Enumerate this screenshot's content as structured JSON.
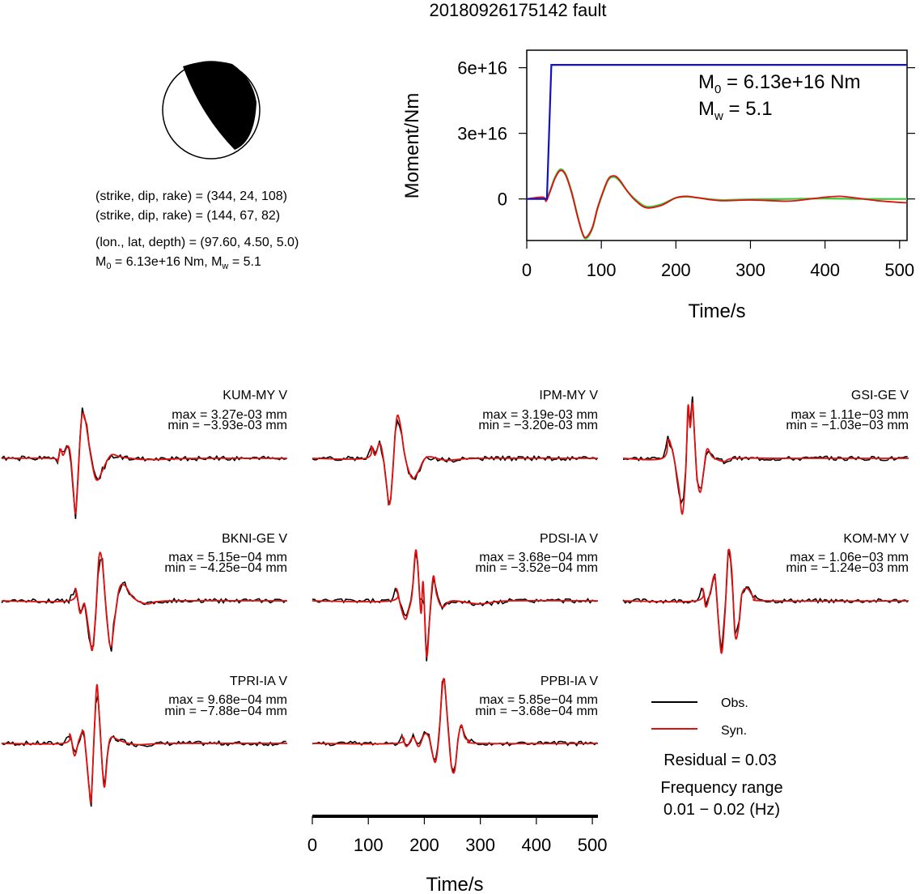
{
  "figure": {
    "title": "20180926175142 fault",
    "info_lines": [
      "(strike, dip, rake) = (344, 24, 108)",
      "(strike, dip, rake) = (144, 67, 82)",
      "(lon., lat, depth) = (97.60, 4.50, 5.0)"
    ],
    "info_m0_prefix": "M",
    "info_m0_sub": "0",
    "info_m0_rest": " = 6.13e+16 Nm, M",
    "info_mw_sub": "w",
    "info_mw_rest": " = 5.1",
    "moment_box": {
      "m0_prefix": "M",
      "m0_sub": "0",
      "m0_rest": " = 6.13e+16 Nm",
      "mw_prefix": "M",
      "mw_sub": "w",
      "mw_rest": " = 5.1"
    },
    "legend": {
      "obs": "Obs.",
      "syn": "Syn.",
      "residual": "Residual = 0.03",
      "freq_title": "Frequency range",
      "freq_value": "0.01 − 0.02 (Hz)"
    },
    "colors": {
      "moment": "#1010c8",
      "obs": "#000000",
      "syn": "#e01010",
      "green": "#3cc83c"
    }
  },
  "chart_data": [
    {
      "type": "line",
      "name": "moment",
      "xlabel": "Time/s",
      "ylabel": "Moment/Nm",
      "xlim": [
        0,
        510
      ],
      "ylim": [
        -1.9e+16,
        6.8e+16
      ],
      "xticks": [
        0,
        100,
        200,
        300,
        400,
        500
      ],
      "xtick_labels": [
        "0",
        "100",
        "200",
        "300",
        "400",
        "500"
      ],
      "yticks": [
        0,
        3e+16,
        6e+16
      ],
      "ytick_labels": [
        "0",
        "3e+16",
        "6e+16"
      ],
      "moment_curve": {
        "x": [
          0,
          27,
          30,
          33,
          510
        ],
        "y": [
          0,
          0,
          3e+16,
          6.13e+16,
          6.13e+16
        ]
      },
      "rate_red": {
        "x": [
          0,
          22,
          26,
          32,
          38,
          45,
          52,
          60,
          68,
          75,
          80,
          88,
          95,
          103,
          110,
          118,
          125,
          135,
          145,
          160,
          180,
          200,
          215,
          230,
          260,
          300,
          350,
          380,
          400,
          420,
          440,
          470,
          510
        ],
        "y": [
          0,
          800000000000000.0,
          -1000000000000000.0,
          4000000000000000.0,
          9500000000000000.0,
          1.3e+16,
          1.1e+16,
          3000000000000000.0,
          -8000000000000000.0,
          -1.6e+16,
          -1.75e+16,
          -1.3e+16,
          -4000000000000000.0,
          4000000000000000.0,
          9500000000000000.0,
          1.05e+16,
          8500000000000000.0,
          3500000000000000.0,
          -500000000000000.0,
          -4000000000000000.0,
          -3000000000000000.0,
          500000000000000.0,
          1200000000000000.0,
          500000000000000.0,
          -800000000000000.0,
          -500000000000000.0,
          -1000000000000000.0,
          0.0,
          800000000000000.0,
          1200000000000000.0,
          500000000000000.0,
          -800000000000000.0,
          -1800000000000000.0
        ]
      },
      "rate_green": {
        "x": [
          0,
          22,
          26,
          32,
          38,
          45,
          52,
          60,
          68,
          75,
          80,
          88,
          95,
          103,
          110,
          118,
          125,
          135,
          145,
          160,
          180,
          200,
          215,
          230,
          260,
          300,
          350,
          400,
          450,
          510
        ],
        "y": [
          0,
          500000000000000.0,
          -500000000000000.0,
          4500000000000000.0,
          1e+16,
          1.35e+16,
          1.15e+16,
          3500000000000000.0,
          -7500000000000000.0,
          -1.6e+16,
          -1.8e+16,
          -1.35e+16,
          -4500000000000000.0,
          3500000000000000.0,
          9000000000000000.0,
          1e+16,
          8000000000000000.0,
          3500000000000000.0,
          0.0,
          -3500000000000000.0,
          -2500000000000000.0,
          500000000000000.0,
          1000000000000000.0,
          500000000000000.0,
          -500000000000000.0,
          -200000000000000.0,
          0.0,
          200000000000000.0,
          0.0,
          0.0
        ]
      }
    },
    {
      "type": "line",
      "name": "waveforms",
      "xlabel": "Time/s",
      "xlim": [
        0,
        510
      ],
      "xticks": [
        0,
        100,
        200,
        300,
        400,
        500
      ],
      "xtick_labels": [
        "0",
        "100",
        "200",
        "300",
        "400",
        "500"
      ],
      "series_names": [
        "Obs.",
        "Syn."
      ],
      "stations": [
        {
          "label": "KUM-MY V",
          "max": "max = 3.27e-03 mm",
          "min": "min = −3.93e-03 mm",
          "seed": 1,
          "syn": [
            [
              0,
              0
            ],
            [
              90,
              0
            ],
            [
              100,
              -0.05
            ],
            [
              105,
              0.15
            ],
            [
              110,
              0.05
            ],
            [
              118,
              0.2
            ],
            [
              123,
              0.05
            ],
            [
              128,
              -0.5
            ],
            [
              132,
              -0.9
            ],
            [
              136,
              -0.4
            ],
            [
              140,
              0.3
            ],
            [
              144,
              0.72
            ],
            [
              150,
              0.6
            ],
            [
              158,
              0.1
            ],
            [
              166,
              -0.28
            ],
            [
              172,
              -0.35
            ],
            [
              180,
              -0.2
            ],
            [
              195,
              0.05
            ],
            [
              215,
              0.02
            ],
            [
              260,
              -0.02
            ],
            [
              350,
              0.0
            ],
            [
              510,
              0.0
            ]
          ]
        },
        {
          "label": "IPM-MY V",
          "max": "max = 3.19e-03 mm",
          "min": "min = −3.20e-03 mm",
          "seed": 2,
          "syn": [
            [
              0,
              0
            ],
            [
              95,
              0
            ],
            [
              105,
              0.2
            ],
            [
              112,
              0.05
            ],
            [
              120,
              0.25
            ],
            [
              126,
              0.05
            ],
            [
              132,
              -0.4
            ],
            [
              138,
              -0.75
            ],
            [
              143,
              -0.3
            ],
            [
              148,
              0.4
            ],
            [
              152,
              0.7
            ],
            [
              158,
              0.5
            ],
            [
              164,
              0.1
            ],
            [
              172,
              -0.2
            ],
            [
              180,
              -0.33
            ],
            [
              190,
              -0.2
            ],
            [
              205,
              0.02
            ],
            [
              240,
              -0.03
            ],
            [
              300,
              0.0
            ],
            [
              510,
              0.0
            ]
          ]
        },
        {
          "label": "GSI-GE V",
          "max": "max = 1.11e−03 mm",
          "min": "min = −1.03e−03 mm",
          "seed": 3,
          "syn": [
            [
              0,
              0
            ],
            [
              70,
              0
            ],
            [
              80,
              0.3
            ],
            [
              86,
              0.2
            ],
            [
              92,
              -0.05
            ],
            [
              100,
              -0.5
            ],
            [
              106,
              -0.9
            ],
            [
              112,
              -0.2
            ],
            [
              116,
              0.85
            ],
            [
              120,
              0.5
            ],
            [
              124,
              0.9
            ],
            [
              128,
              0.3
            ],
            [
              132,
              -0.3
            ],
            [
              138,
              -0.55
            ],
            [
              144,
              -0.2
            ],
            [
              150,
              0.15
            ],
            [
              160,
              0.02
            ],
            [
              180,
              -0.05
            ],
            [
              200,
              0.0
            ],
            [
              300,
              0.0
            ],
            [
              510,
              0.0
            ]
          ]
        },
        {
          "label": "BKNI-GE V",
          "max": "max = 5.15e−04 mm",
          "min": "min = −4.25e−04 mm",
          "seed": 4,
          "syn": [
            [
              0,
              0
            ],
            [
              120,
              0
            ],
            [
              132,
              0.2
            ],
            [
              140,
              -0.2
            ],
            [
              148,
              -0.05
            ],
            [
              156,
              -0.5
            ],
            [
              162,
              -0.8
            ],
            [
              168,
              -0.2
            ],
            [
              174,
              0.72
            ],
            [
              180,
              0.6
            ],
            [
              188,
              -0.3
            ],
            [
              195,
              -0.75
            ],
            [
              202,
              -0.3
            ],
            [
              210,
              0.2
            ],
            [
              220,
              0.25
            ],
            [
              235,
              0.05
            ],
            [
              260,
              -0.05
            ],
            [
              300,
              0.0
            ],
            [
              510,
              0.0
            ]
          ]
        },
        {
          "label": "PDSI-IA V",
          "max": "max = 3.68e−04 mm",
          "min": "min = −3.52e−04 mm",
          "seed": 5,
          "syn": [
            [
              0,
              0
            ],
            [
              140,
              0
            ],
            [
              150,
              0.2
            ],
            [
              158,
              -0.1
            ],
            [
              166,
              -0.3
            ],
            [
              172,
              -0.15
            ],
            [
              178,
              0.1
            ],
            [
              184,
              0.8
            ],
            [
              188,
              0.6
            ],
            [
              194,
              -0.2
            ],
            [
              198,
              0.3
            ],
            [
              204,
              -0.9
            ],
            [
              210,
              -0.2
            ],
            [
              216,
              0.4
            ],
            [
              222,
              0.1
            ],
            [
              232,
              -0.1
            ],
            [
              250,
              0.0
            ],
            [
              300,
              -0.05
            ],
            [
              350,
              0.0
            ],
            [
              510,
              0.0
            ]
          ]
        },
        {
          "label": "KOM-MY V",
          "max": "max = 1.06e−03 mm",
          "min": "min = −1.24e−03 mm",
          "seed": 6,
          "syn": [
            [
              0,
              0
            ],
            [
              130,
              0
            ],
            [
              142,
              0.2
            ],
            [
              148,
              -0.1
            ],
            [
              156,
              0.15
            ],
            [
              164,
              0.4
            ],
            [
              170,
              -0.3
            ],
            [
              176,
              -0.85
            ],
            [
              182,
              -0.2
            ],
            [
              188,
              0.8
            ],
            [
              194,
              0.5
            ],
            [
              200,
              -0.55
            ],
            [
              206,
              -0.45
            ],
            [
              212,
              0.1
            ],
            [
              222,
              0.2
            ],
            [
              235,
              0.05
            ],
            [
              260,
              0.0
            ],
            [
              510,
              0.0
            ]
          ]
        },
        {
          "label": "TPRI-IA V",
          "max": "max = 9.68e−04 mm",
          "min": "min = −7.88e−04 mm",
          "seed": 7,
          "syn": [
            [
              0,
              0
            ],
            [
              110,
              0
            ],
            [
              122,
              0.15
            ],
            [
              130,
              -0.2
            ],
            [
              138,
              0.05
            ],
            [
              146,
              0.2
            ],
            [
              150,
              -0.1
            ],
            [
              156,
              -0.7
            ],
            [
              160,
              -0.9
            ],
            [
              166,
              0.3
            ],
            [
              170,
              0.95
            ],
            [
              174,
              0.5
            ],
            [
              180,
              -0.4
            ],
            [
              184,
              -0.7
            ],
            [
              190,
              -0.1
            ],
            [
              196,
              0.1
            ],
            [
              210,
              0.05
            ],
            [
              240,
              -0.02
            ],
            [
              300,
              0.0
            ],
            [
              510,
              0.0
            ]
          ]
        },
        {
          "label": "PPBI-IA V",
          "max": "max = 5.85e−04 mm",
          "min": "min = −3.68e−04 mm",
          "seed": 8,
          "syn": [
            [
              0,
              0
            ],
            [
              150,
              0
            ],
            [
              160,
              0.12
            ],
            [
              168,
              -0.05
            ],
            [
              180,
              0.1
            ],
            [
              190,
              -0.05
            ],
            [
              200,
              0.15
            ],
            [
              208,
              0.1
            ],
            [
              214,
              -0.15
            ],
            [
              220,
              -0.3
            ],
            [
              226,
              0.1
            ],
            [
              232,
              0.9
            ],
            [
              236,
              1.0
            ],
            [
              242,
              0.3
            ],
            [
              248,
              -0.35
            ],
            [
              254,
              -0.45
            ],
            [
              260,
              0.05
            ],
            [
              266,
              0.3
            ],
            [
              272,
              0.1
            ],
            [
              280,
              0.05
            ],
            [
              300,
              0.0
            ],
            [
              510,
              0.0
            ]
          ]
        }
      ]
    }
  ]
}
